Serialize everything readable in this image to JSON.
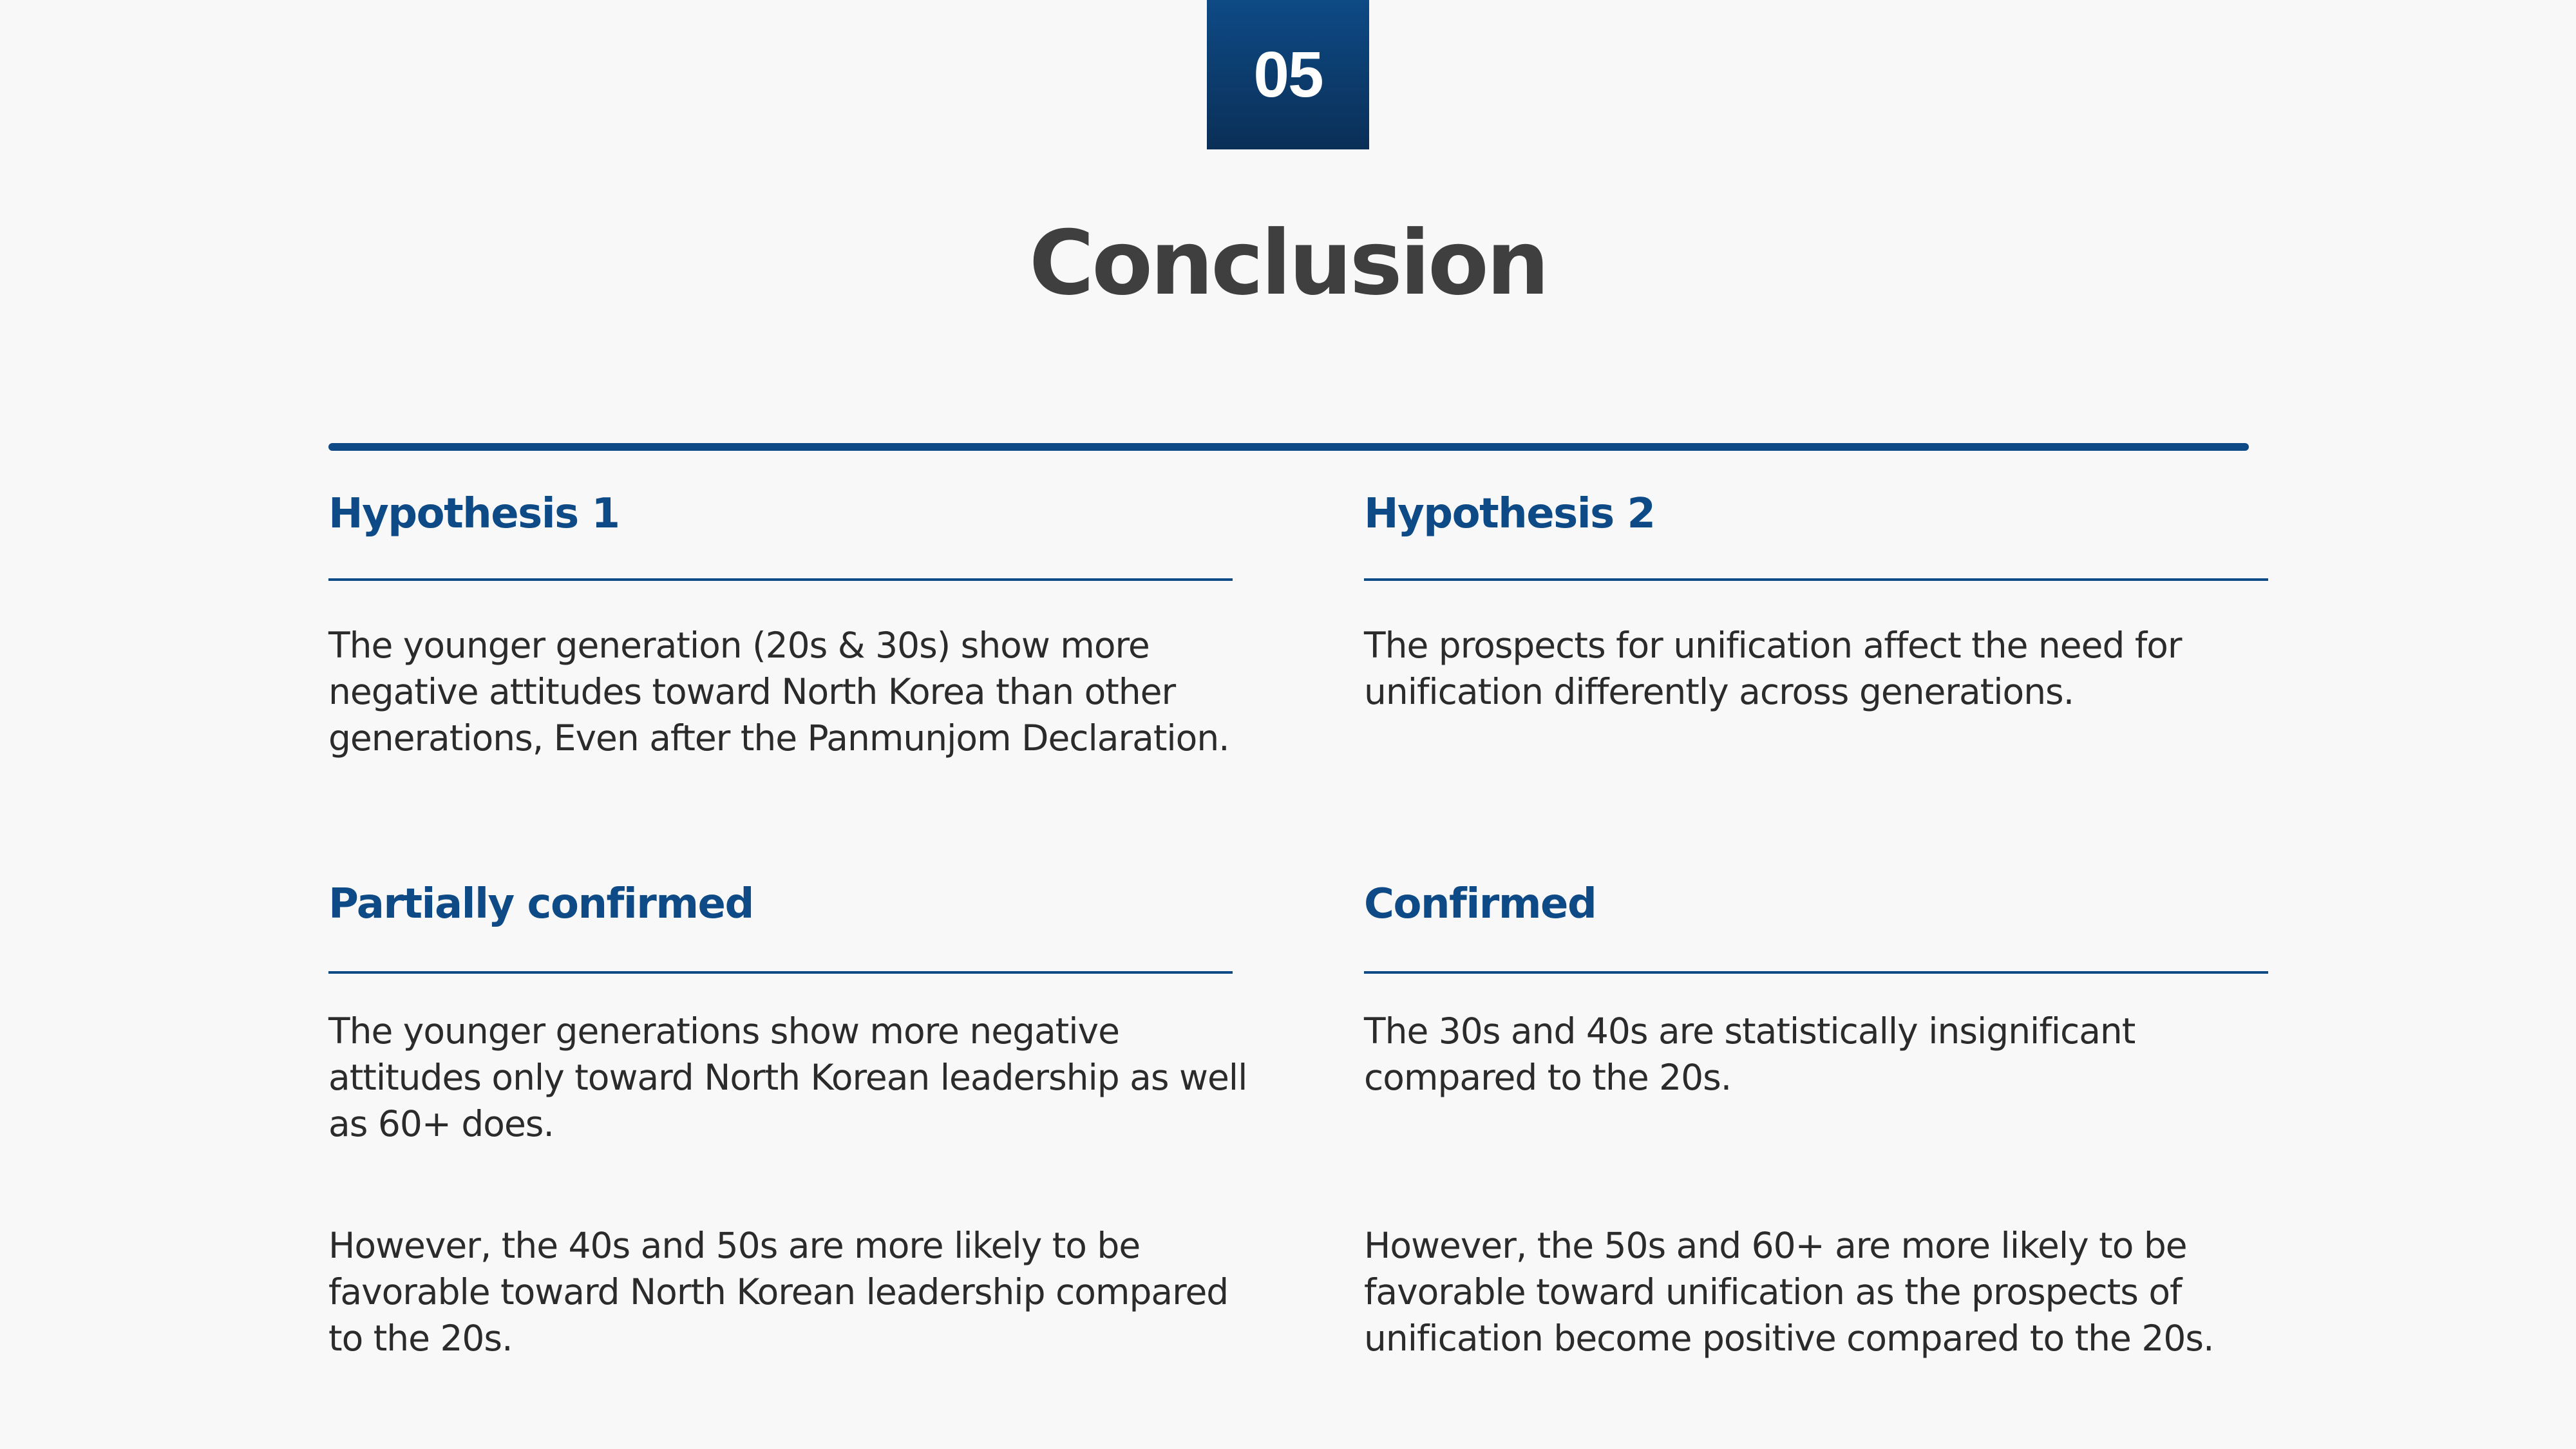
{
  "badge": {
    "number": "05"
  },
  "title": "Conclusion",
  "colors": {
    "accent": "#0e4a85",
    "title": "#3f3f3f",
    "body_text": "#2b2b2b",
    "background": "#f8f8f9"
  },
  "hypothesis_1": {
    "heading": "Hypothesis 1",
    "text": "The younger generation (20s & 30s) show more\nnegative attitudes toward North Korea than other\ngenerations, Even after the Panmunjom Declaration."
  },
  "hypothesis_2": {
    "heading": "Hypothesis 2",
    "text": "The prospects for unification affect the need for\nunification  differently across generations."
  },
  "result_1": {
    "heading": "Partially confirmed",
    "text_1": "The younger generations show more negative\nattitudes only toward North Korean leadership as well\nas 60+ does.",
    "text_2": "However, the 40s and 50s are more likely to be\nfavorable toward North Korean leadership compared\nto the 20s."
  },
  "result_2": {
    "heading": "Confirmed",
    "text_1": "The 30s and 40s are statistically insignificant\ncompared to the 20s.",
    "text_2": "However, the 50s and 60+ are more likely to be\nfavorable toward unification as the prospects of\nunification become positive compared to the 20s."
  }
}
